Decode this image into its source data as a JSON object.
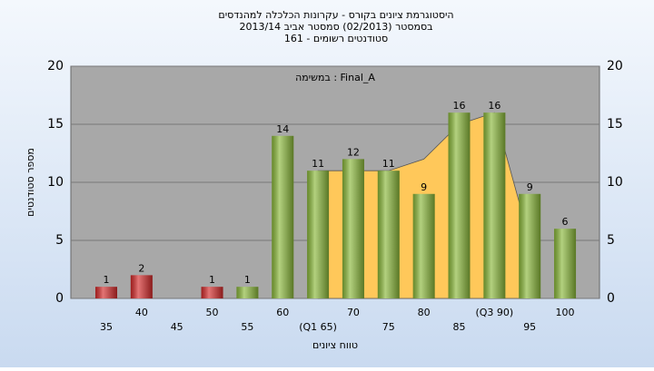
{
  "chart_data": {
    "type": "bar",
    "title": [
      "היסטוגרמת ציונים בקורס - עקרונות הכלכלה למהנדסים",
      "בסמסטר  (02/2013)  סמסטר אביב 2013/14",
      "סטודנטים רשומים - 161"
    ],
    "annotation": "במשימה : Final_A",
    "ylabel": "מספר סטודנטים",
    "xlabel": "טווח ציונים",
    "categories": [
      "35",
      "40",
      "45",
      "50",
      "55",
      "60",
      "(Q1 65)",
      "70",
      "75",
      "80",
      "85",
      "(Q3 90)",
      "95",
      "100"
    ],
    "values": [
      1,
      2,
      null,
      1,
      1,
      14,
      11,
      12,
      11,
      9,
      16,
      16,
      9,
      6
    ],
    "bar_colors": [
      "#d42a2a",
      "#d42a2a",
      "#d42a2a",
      "#d42a2a",
      "#8ab83a",
      "#8ab83a",
      "#8ab83a",
      "#8ab83a",
      "#8ab83a",
      "#8ab83a",
      "#8ab83a",
      "#8ab83a",
      "#8ab83a",
      "#8ab83a"
    ],
    "area": {
      "color": "#ffc85a",
      "values": [
        null,
        null,
        null,
        null,
        null,
        null,
        11,
        11,
        11,
        12,
        15,
        16,
        5,
        null
      ]
    },
    "ylim": [
      0,
      20
    ],
    "yticks": [
      0,
      5,
      10,
      15,
      20
    ],
    "grid": true
  }
}
